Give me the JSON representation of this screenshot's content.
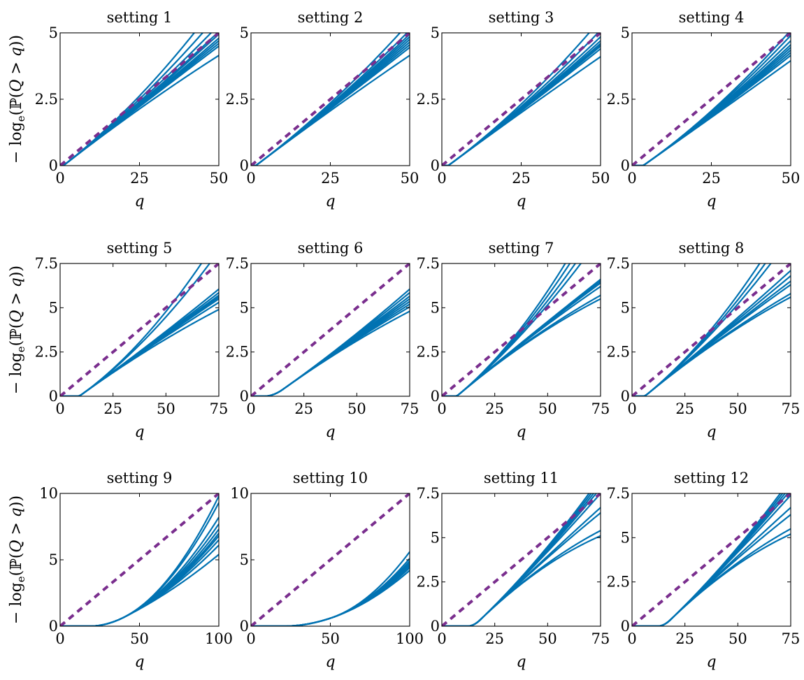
{
  "colors": {
    "curve": "#0072b2",
    "reference": "#7a2e8e"
  },
  "ylabel_parts": [
    "− log",
    "e",
    "(ℙ(",
    "Q",
    " > ",
    "q",
    "))"
  ],
  "chart_data": [
    {
      "type": "line",
      "title": "setting 1",
      "xlabel": "q",
      "xlim": [
        0,
        50
      ],
      "ylim": [
        0,
        5
      ],
      "xticks": [
        0,
        25,
        50
      ],
      "yticks": [
        0,
        2.5,
        5
      ],
      "xtick_labels": [
        "0",
        "25",
        "50"
      ],
      "ytick_labels": [
        "0",
        "2.5",
        "5"
      ],
      "show_ylabel": true,
      "reference": {
        "x": [
          0,
          50
        ],
        "y": [
          0,
          5
        ]
      },
      "curves": {
        "onset": 1,
        "lead": 0,
        "start_slope": 0.093,
        "end_values": [
          4.15,
          4.5,
          4.6,
          4.7,
          4.8,
          4.95,
          5.05,
          5.3,
          5.7,
          6.2
        ]
      }
    },
    {
      "type": "line",
      "title": "setting 2",
      "xlabel": "q",
      "xlim": [
        0,
        50
      ],
      "ylim": [
        0,
        5
      ],
      "xticks": [
        0,
        25,
        50
      ],
      "yticks": [
        0,
        2.5,
        5
      ],
      "xtick_labels": [
        "0",
        "25",
        "50"
      ],
      "ytick_labels": [
        "0",
        "2.5",
        "5"
      ],
      "show_ylabel": false,
      "reference": {
        "x": [
          0,
          50
        ],
        "y": [
          0,
          5
        ]
      },
      "curves": {
        "onset": 1.5,
        "lead": 0,
        "start_slope": 0.09,
        "end_values": [
          4.15,
          4.45,
          4.55,
          4.65,
          4.75,
          4.85,
          4.95,
          5.1,
          5.4
        ]
      }
    },
    {
      "type": "line",
      "title": "setting 3",
      "xlabel": "q",
      "xlim": [
        0,
        50
      ],
      "ylim": [
        0,
        5
      ],
      "xticks": [
        0,
        25,
        50
      ],
      "yticks": [
        0,
        2.5,
        5
      ],
      "xtick_labels": [
        "0",
        "25",
        "50"
      ],
      "ytick_labels": [
        "0",
        "2.5",
        "5"
      ],
      "show_ylabel": false,
      "reference": {
        "x": [
          0,
          50
        ],
        "y": [
          0,
          5
        ]
      },
      "curves": {
        "onset": 2,
        "lead": 0,
        "start_slope": 0.088,
        "end_values": [
          4.1,
          4.4,
          4.5,
          4.55,
          4.6,
          4.7,
          4.85,
          5.1,
          5.5
        ]
      }
    },
    {
      "type": "line",
      "title": "setting 4",
      "xlabel": "q",
      "xlim": [
        0,
        50
      ],
      "ylim": [
        0,
        5
      ],
      "xticks": [
        0,
        25,
        50
      ],
      "yticks": [
        0,
        2.5,
        5
      ],
      "xtick_labels": [
        "0",
        "25",
        "50"
      ],
      "ytick_labels": [
        "0",
        "2.5",
        "5"
      ],
      "show_ylabel": false,
      "reference": {
        "x": [
          0,
          50
        ],
        "y": [
          0,
          5
        ]
      },
      "curves": {
        "onset": 3.5,
        "lead": 0,
        "start_slope": 0.084,
        "end_values": [
          3.95,
          4.15,
          4.25,
          4.35,
          4.45,
          4.55,
          4.7,
          4.9,
          5.1
        ]
      }
    },
    {
      "type": "line",
      "title": "setting 5",
      "xlabel": "q",
      "xlim": [
        0,
        75
      ],
      "ylim": [
        0,
        7.5
      ],
      "xticks": [
        0,
        25,
        50,
        75
      ],
      "yticks": [
        0,
        2.5,
        5,
        7.5
      ],
      "xtick_labels": [
        "0",
        "25",
        "50",
        "75"
      ],
      "ytick_labels": [
        "0",
        "2.5",
        "5",
        "7.5"
      ],
      "show_ylabel": true,
      "reference": {
        "x": [
          0,
          75
        ],
        "y": [
          0,
          7.5
        ]
      },
      "curves": {
        "onset": 8,
        "lead": 2,
        "start_slope": 0.086,
        "end_values": [
          4.9,
          5.3,
          5.5,
          5.6,
          5.7,
          5.85,
          6.05,
          8.2,
          9.0
        ]
      }
    },
    {
      "type": "line",
      "title": "setting 6",
      "xlabel": "q",
      "xlim": [
        0,
        75
      ],
      "ylim": [
        0,
        7.5
      ],
      "xticks": [
        0,
        25,
        50,
        75
      ],
      "yticks": [
        0,
        2.5,
        5,
        7.5
      ],
      "xtick_labels": [
        "0",
        "25",
        "50",
        "75"
      ],
      "ytick_labels": [
        "0",
        "2.5",
        "5",
        "7.5"
      ],
      "show_ylabel": false,
      "reference": {
        "x": [
          0,
          75
        ],
        "y": [
          0,
          7.5
        ]
      },
      "curves": {
        "onset": 6,
        "lead": 9,
        "start_slope": 0.085,
        "end_values": [
          4.8,
          5.05,
          5.2,
          5.35,
          5.5,
          5.65,
          5.85,
          6.05
        ]
      }
    },
    {
      "type": "line",
      "title": "setting 7",
      "xlabel": "q",
      "xlim": [
        0,
        75
      ],
      "ylim": [
        0,
        7.5
      ],
      "xticks": [
        0,
        25,
        50,
        75
      ],
      "yticks": [
        0,
        2.5,
        5,
        7.5
      ],
      "xtick_labels": [
        "0",
        "25",
        "50",
        "75"
      ],
      "ytick_labels": [
        "0",
        "2.5",
        "5",
        "7.5"
      ],
      "show_ylabel": false,
      "reference": {
        "x": [
          0,
          75
        ],
        "y": [
          0,
          7.5
        ]
      },
      "curves": {
        "onset": 6,
        "lead": 2,
        "start_slope": 0.1,
        "end_values": [
          5.5,
          5.7,
          6.2,
          6.4,
          6.5,
          6.6,
          9.0,
          9.6,
          10.3,
          11.0
        ]
      }
    },
    {
      "type": "line",
      "title": "setting 8",
      "xlabel": "q",
      "xlim": [
        0,
        75
      ],
      "ylim": [
        0,
        7.5
      ],
      "xticks": [
        0,
        25,
        50,
        75
      ],
      "yticks": [
        0,
        2.5,
        5,
        7.5
      ],
      "xtick_labels": [
        "0",
        "25",
        "50",
        "75"
      ],
      "ytick_labels": [
        "0",
        "2.5",
        "5",
        "7.5"
      ],
      "show_ylabel": false,
      "reference": {
        "x": [
          0,
          75
        ],
        "y": [
          0,
          7.5
        ]
      },
      "curves": {
        "onset": 5,
        "lead": 2,
        "start_slope": 0.098,
        "end_values": [
          5.6,
          5.8,
          6.3,
          6.5,
          6.8,
          7.1,
          9.0,
          9.6,
          10.3
        ]
      }
    },
    {
      "type": "line",
      "title": "setting 9",
      "xlabel": "q",
      "xlim": [
        0,
        100
      ],
      "ylim": [
        0,
        10
      ],
      "xticks": [
        0,
        50,
        100
      ],
      "yticks": [
        0,
        5,
        10
      ],
      "xtick_labels": [
        "0",
        "50",
        "100"
      ],
      "ytick_labels": [
        "0",
        "5",
        "10"
      ],
      "show_ylabel": true,
      "reference": {
        "x": [
          0,
          100
        ],
        "y": [
          0,
          10
        ]
      },
      "curves": {
        "onset": 18,
        "lead": 22,
        "start_slope": 0.06,
        "end_values": [
          5.4,
          6.1,
          6.5,
          6.8,
          7.0,
          7.3,
          7.7,
          8.2,
          9.3,
          9.8
        ]
      }
    },
    {
      "type": "line",
      "title": "setting 10",
      "xlabel": "q",
      "xlim": [
        0,
        100
      ],
      "ylim": [
        0,
        10
      ],
      "xticks": [
        0,
        50,
        100
      ],
      "yticks": [
        0,
        5,
        10
      ],
      "xtick_labels": [
        "0",
        "50",
        "100"
      ],
      "ytick_labels": [
        "0",
        "5",
        "10"
      ],
      "show_ylabel": false,
      "reference": {
        "x": [
          0,
          100
        ],
        "y": [
          0,
          10
        ]
      },
      "curves": {
        "onset": 20,
        "lead": 30,
        "start_slope": 0.04,
        "end_values": [
          4.2,
          4.4,
          4.5,
          4.6,
          4.75,
          4.9,
          5.1,
          5.6
        ]
      }
    },
    {
      "type": "line",
      "title": "setting 11",
      "xlabel": "q",
      "xlim": [
        0,
        75
      ],
      "ylim": [
        0,
        7.5
      ],
      "xticks": [
        0,
        25,
        50,
        75
      ],
      "yticks": [
        0,
        2.5,
        5,
        7.5
      ],
      "xtick_labels": [
        "0",
        "25",
        "50",
        "75"
      ],
      "ytick_labels": [
        "0",
        "2.5",
        "5",
        "7.5"
      ],
      "show_ylabel": false,
      "reference": {
        "x": [
          0,
          75
        ],
        "y": [
          0,
          7.5
        ]
      },
      "curves": {
        "onset": 12,
        "lead": 6,
        "start_slope": 0.115,
        "end_values": [
          5.1,
          5.4,
          6.4,
          6.7,
          7.5,
          7.8,
          8.0,
          8.2,
          8.4
        ]
      }
    },
    {
      "type": "line",
      "title": "setting 12",
      "xlabel": "q",
      "xlim": [
        0,
        75
      ],
      "ylim": [
        0,
        7.5
      ],
      "xticks": [
        0,
        25,
        50,
        75
      ],
      "yticks": [
        0,
        2.5,
        5,
        7.5
      ],
      "xtick_labels": [
        "0",
        "25",
        "50",
        "75"
      ],
      "ytick_labels": [
        "0",
        "2.5",
        "5",
        "7.5"
      ],
      "show_ylabel": false,
      "reference": {
        "x": [
          0,
          75
        ],
        "y": [
          0,
          7.5
        ]
      },
      "curves": {
        "onset": 12,
        "lead": 6,
        "start_slope": 0.115,
        "end_values": [
          5.2,
          5.5,
          6.3,
          6.7,
          7.4,
          7.7,
          7.9,
          8.1,
          8.3
        ]
      }
    }
  ]
}
